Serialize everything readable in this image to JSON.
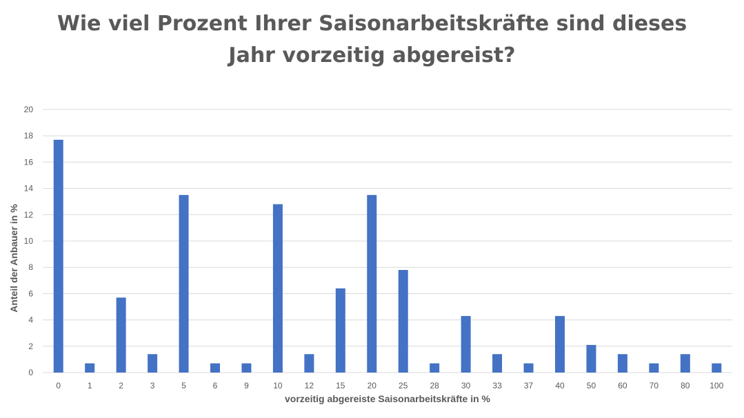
{
  "chart_data": {
    "type": "bar",
    "title_lines": [
      "Wie viel Prozent Ihrer Saisonarbeitskräfte sind dieses",
      "Jahr vorzeitig abgereist?"
    ],
    "xlabel": "vorzeitig abgereiste Saisonarbeitskräfte in %",
    "ylabel": "Anteil der Anbauer in %",
    "categories": [
      "0",
      "1",
      "2",
      "3",
      "5",
      "6",
      "9",
      "10",
      "12",
      "15",
      "20",
      "25",
      "28",
      "30",
      "33",
      "37",
      "40",
      "50",
      "60",
      "70",
      "80",
      "100"
    ],
    "values": [
      17.7,
      0.7,
      5.7,
      1.4,
      13.5,
      0.7,
      0.7,
      12.8,
      1.4,
      6.4,
      13.5,
      7.8,
      0.7,
      4.3,
      1.4,
      0.7,
      4.3,
      2.1,
      1.4,
      0.7,
      1.4,
      0.7
    ],
    "ylim": [
      0,
      20
    ],
    "yticks": [
      "0",
      "2",
      "4",
      "6",
      "8",
      "10",
      "12",
      "14",
      "16",
      "18",
      "20"
    ],
    "grid": true,
    "bar_color": "#4472C4",
    "grid_color": "#D9D9D9",
    "text_color": "#595959"
  }
}
